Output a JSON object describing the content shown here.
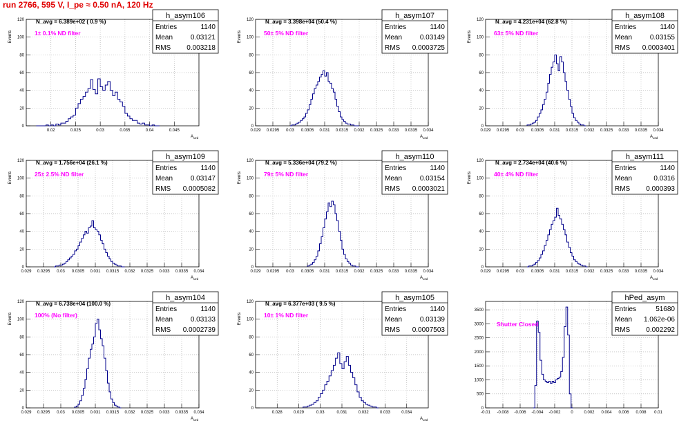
{
  "run_title": "run 2766,   595 V, I_pe ≈ 0.50 nA, 120 Hz",
  "colors": {
    "hist_line": "#00008b",
    "title_red": "#e00000",
    "filter_text": "#ff00ff",
    "grid": "#b0b0b0"
  },
  "chart_data": [
    {
      "type": "histogram",
      "name": "h_asym106",
      "stats": {
        "entries": "1140",
        "mean": "0.03121",
        "rms": "0.003218"
      },
      "stat_labels": [
        "Entries",
        "Mean",
        "RMS"
      ],
      "navg": "N_avg = 6.389e+02 ( 0.9 %)",
      "filter": "1± 0.1% ND filter",
      "ylabel": "Events",
      "xlabel": "A_uzd",
      "xlim": [
        0.015,
        0.05
      ],
      "ylim": [
        0,
        120
      ],
      "xticks": [
        0.02,
        0.025,
        0.03,
        0.035,
        0.04,
        0.045
      ],
      "xtick_labels": [
        "0.02",
        "0.025",
        "0.03",
        "0.035",
        "0.04",
        "0.045"
      ],
      "yticks": [
        0,
        20,
        40,
        60,
        80,
        100,
        120
      ],
      "bins": {
        "start": 0.017,
        "width": 0.0005,
        "counts": [
          0,
          0,
          0,
          0,
          1,
          0,
          1,
          0,
          2,
          1,
          3,
          3,
          5,
          8,
          10,
          12,
          20,
          25,
          30,
          33,
          38,
          42,
          52,
          41,
          36,
          53,
          44,
          40,
          46,
          50,
          40,
          34,
          38,
          30,
          27,
          22,
          14,
          11,
          8,
          6,
          6,
          3,
          2,
          3,
          1,
          1,
          0,
          1,
          0,
          0
        ]
      }
    },
    {
      "type": "histogram",
      "name": "h_asym107",
      "stats": {
        "entries": "1140",
        "mean": "0.03149",
        "rms": "0.0003725"
      },
      "stat_labels": [
        "Entries",
        "Mean",
        "RMS"
      ],
      "navg": "N_avg = 3.398e+04 (50.4 %)",
      "filter": "50± 5% ND filter",
      "ylabel": "Events",
      "xlabel": "A_uzd",
      "xlim": [
        0.029,
        0.034
      ],
      "ylim": [
        0,
        120
      ],
      "xticks": [
        0.029,
        0.0295,
        0.03,
        0.0305,
        0.031,
        0.0315,
        0.032,
        0.0325,
        0.033,
        0.0335,
        0.034
      ],
      "xtick_labels": [
        "0.029",
        "0.0295",
        "0.03",
        "0.0305",
        "0.031",
        "0.0315",
        "0.032",
        "0.0325",
        "0.033",
        "0.0335",
        "0.034"
      ],
      "yticks": [
        0,
        20,
        40,
        60,
        80,
        100,
        120
      ],
      "bins": {
        "start": 0.03,
        "width": 5e-05,
        "counts": [
          0,
          1,
          1,
          2,
          3,
          4,
          6,
          8,
          10,
          14,
          18,
          24,
          30,
          36,
          42,
          46,
          50,
          55,
          58,
          62,
          56,
          60,
          50,
          48,
          42,
          38,
          30,
          22,
          16,
          10,
          7,
          5,
          3,
          2,
          2,
          1,
          1,
          0,
          0,
          0
        ]
      }
    },
    {
      "type": "histogram",
      "name": "h_asym108",
      "stats": {
        "entries": "1140",
        "mean": "0.03155",
        "rms": "0.0003401"
      },
      "stat_labels": [
        "Entries",
        "Mean",
        "RMS"
      ],
      "navg": "N_avg = 4.231e+04 (62.8 %)",
      "filter": "63± 5% ND filter",
      "ylabel": "Events",
      "xlabel": "A_uzd",
      "xlim": [
        0.029,
        0.034
      ],
      "ylim": [
        0,
        120
      ],
      "xticks": [
        0.029,
        0.0295,
        0.03,
        0.0305,
        0.031,
        0.0315,
        0.032,
        0.0325,
        0.033,
        0.0335,
        0.034
      ],
      "xtick_labels": [
        "0.029",
        "0.0295",
        "0.03",
        "0.0305",
        "0.031",
        "0.0315",
        "0.032",
        "0.0325",
        "0.033",
        "0.0335",
        "0.034"
      ],
      "yticks": [
        0,
        20,
        40,
        60,
        80,
        100,
        120
      ],
      "bins": {
        "start": 0.0302,
        "width": 5e-05,
        "counts": [
          1,
          1,
          2,
          3,
          4,
          6,
          10,
          14,
          18,
          24,
          30,
          38,
          48,
          58,
          66,
          72,
          80,
          70,
          62,
          78,
          72,
          60,
          50,
          40,
          30,
          22,
          14,
          9,
          6,
          4,
          2,
          1,
          1,
          0
        ]
      }
    },
    {
      "type": "histogram",
      "name": "h_asym109",
      "stats": {
        "entries": "1140",
        "mean": "0.03147",
        "rms": "0.0005082"
      },
      "stat_labels": [
        "Entries",
        "Mean",
        "RMS"
      ],
      "navg": "N_avg = 1.756e+04 (26.1 %)",
      "filter": "25± 2.5% ND filter",
      "ylabel": "Events",
      "xlabel": "A_uzd",
      "xlim": [
        0.029,
        0.034
      ],
      "ylim": [
        0,
        120
      ],
      "xticks": [
        0.029,
        0.0295,
        0.03,
        0.0305,
        0.031,
        0.0315,
        0.032,
        0.0325,
        0.033,
        0.0335,
        0.034
      ],
      "xtick_labels": [
        "0.029",
        "0.0295",
        "0.03",
        "0.0305",
        "0.031",
        "0.0315",
        "0.032",
        "0.0325",
        "0.033",
        "0.0335",
        "0.034"
      ],
      "yticks": [
        0,
        20,
        40,
        60,
        80,
        100,
        120
      ],
      "bins": {
        "start": 0.0298,
        "width": 5e-05,
        "counts": [
          0,
          1,
          1,
          2,
          2,
          3,
          4,
          6,
          8,
          10,
          12,
          14,
          18,
          20,
          24,
          28,
          32,
          36,
          40,
          38,
          44,
          46,
          52,
          44,
          42,
          40,
          36,
          30,
          26,
          20,
          16,
          12,
          9,
          6,
          4,
          3,
          2,
          1,
          1,
          0,
          0
        ]
      }
    },
    {
      "type": "histogram",
      "name": "h_asym110",
      "stats": {
        "entries": "1140",
        "mean": "0.03154",
        "rms": "0.0003021"
      },
      "stat_labels": [
        "Entries",
        "Mean",
        "RMS"
      ],
      "navg": "N_avg = 5.336e+04 (79.2 %)",
      "filter": "79± 5% ND filter",
      "ylabel": "Events",
      "xlabel": "A_uzd",
      "xlim": [
        0.029,
        0.034
      ],
      "ylim": [
        0,
        120
      ],
      "xticks": [
        0.029,
        0.0295,
        0.03,
        0.0305,
        0.031,
        0.0315,
        0.032,
        0.0325,
        0.033,
        0.0335,
        0.034
      ],
      "xtick_labels": [
        "0.029",
        "0.0295",
        "0.03",
        "0.0305",
        "0.031",
        "0.0315",
        "0.032",
        "0.0325",
        "0.033",
        "0.0335",
        "0.034"
      ],
      "yticks": [
        0,
        20,
        40,
        60,
        80,
        100,
        120
      ],
      "bins": {
        "start": 0.0305,
        "width": 5e-05,
        "counts": [
          1,
          2,
          3,
          5,
          8,
          12,
          18,
          26,
          34,
          44,
          54,
          62,
          72,
          68,
          74,
          70,
          60,
          52,
          40,
          30,
          20,
          14,
          9,
          6,
          4,
          2,
          1,
          1,
          0,
          0
        ]
      }
    },
    {
      "type": "histogram",
      "name": "h_asym111",
      "stats": {
        "entries": "1140",
        "mean": "0.0316",
        "rms": "0.000393"
      },
      "stat_labels": [
        "Entries",
        "Mean",
        "RMS"
      ],
      "navg": "N_avg = 2.734e+04 (40.6 %)",
      "filter": "40± 4% ND filter",
      "ylabel": "Events",
      "xlabel": "A_uzd",
      "xlim": [
        0.029,
        0.034
      ],
      "ylim": [
        0,
        120
      ],
      "xticks": [
        0.029,
        0.0295,
        0.03,
        0.0305,
        0.031,
        0.0315,
        0.032,
        0.0325,
        0.033,
        0.0335,
        0.034
      ],
      "xtick_labels": [
        "0.029",
        "0.0295",
        "0.03",
        "0.0305",
        "0.031",
        "0.0315",
        "0.032",
        "0.0325",
        "0.033",
        "0.0335",
        "0.034"
      ],
      "yticks": [
        0,
        20,
        40,
        60,
        80,
        100,
        120
      ],
      "bins": {
        "start": 0.0302,
        "width": 5e-05,
        "counts": [
          0,
          1,
          1,
          2,
          3,
          5,
          7,
          10,
          14,
          18,
          24,
          30,
          36,
          42,
          48,
          52,
          56,
          66,
          58,
          54,
          48,
          42,
          36,
          28,
          22,
          16,
          12,
          8,
          6,
          4,
          3,
          2,
          1,
          1,
          0
        ]
      }
    },
    {
      "type": "histogram",
      "name": "h_asym104",
      "stats": {
        "entries": "1140",
        "mean": "0.03133",
        "rms": "0.0002739"
      },
      "stat_labels": [
        "Entries",
        "Mean",
        "RMS"
      ],
      "navg": "N_avg = 6.738e+04 (100.0 %)",
      "filter": "100% (No filter)",
      "ylabel": "Events",
      "xlabel": "A_uzd",
      "xlim": [
        0.029,
        0.034
      ],
      "ylim": [
        0,
        120
      ],
      "xticks": [
        0.029,
        0.0295,
        0.03,
        0.0305,
        0.031,
        0.0315,
        0.032,
        0.0325,
        0.033,
        0.0335,
        0.034
      ],
      "xtick_labels": [
        "0.029",
        "0.0295",
        "0.03",
        "0.0305",
        "0.031",
        "0.0315",
        "0.032",
        "0.0325",
        "0.033",
        "0.0335",
        "0.034"
      ],
      "yticks": [
        0,
        20,
        40,
        60,
        80,
        100,
        120
      ],
      "bins": {
        "start": 0.0304,
        "width": 5e-05,
        "counts": [
          1,
          2,
          4,
          8,
          14,
          22,
          32,
          44,
          56,
          66,
          72,
          80,
          95,
          100,
          88,
          78,
          70,
          56,
          42,
          28,
          18,
          10,
          6,
          3,
          2,
          1,
          0
        ]
      }
    },
    {
      "type": "histogram",
      "name": "h_asym105",
      "stats": {
        "entries": "1140",
        "mean": "0.03139",
        "rms": "0.0007503"
      },
      "stat_labels": [
        "Entries",
        "Mean",
        "RMS"
      ],
      "navg": "N_avg = 6.377e+03 ( 9.5 %)",
      "filter": "10± 1% ND filter",
      "ylabel": "Events",
      "xlabel": "A_uzd",
      "xlim": [
        0.027,
        0.035
      ],
      "ylim": [
        0,
        120
      ],
      "xticks": [
        0.028,
        0.029,
        0.03,
        0.031,
        0.032,
        0.033,
        0.034
      ],
      "xtick_labels": [
        "0.028",
        "0.029",
        "0.03",
        "0.031",
        "0.032",
        "0.033",
        "0.034"
      ],
      "yticks": [
        0,
        20,
        40,
        60,
        80,
        100,
        120
      ],
      "bins": {
        "start": 0.0292,
        "width": 0.0001,
        "counts": [
          1,
          1,
          2,
          3,
          4,
          6,
          8,
          12,
          16,
          20,
          26,
          30,
          36,
          42,
          48,
          56,
          62,
          50,
          44,
          52,
          58,
          48,
          40,
          34,
          26,
          18,
          12,
          8,
          6,
          4,
          3,
          2,
          1,
          1,
          0
        ]
      }
    },
    {
      "type": "histogram",
      "name": "hPed_asym",
      "stats": {
        "entries": "51680",
        "mean": "1.062e-06",
        "rms": "0.002292"
      },
      "stat_labels": [
        "Entries",
        "Mean",
        "RMS"
      ],
      "filter": "Shutter Closed",
      "xlabel": "",
      "xlim": [
        -0.01,
        0.01
      ],
      "ylim": [
        0,
        3800
      ],
      "xticks": [
        -0.01,
        -0.008,
        -0.006,
        -0.004,
        -0.002,
        0,
        0.002,
        0.004,
        0.006,
        0.008,
        0.01
      ],
      "xtick_labels": [
        "-0.01",
        "-0.008",
        "-0.006",
        "-0.004",
        "-0.002",
        "0",
        "0.002",
        "0.004",
        "0.006",
        "0.008",
        "0.01"
      ],
      "yticks": [
        0,
        500,
        1000,
        1500,
        2000,
        2500,
        3000,
        3500
      ],
      "bins": {
        "start": -0.0045,
        "width": 0.0002,
        "counts": [
          0,
          800,
          3100,
          2700,
          1700,
          1200,
          1000,
          950,
          900,
          950,
          880,
          950,
          900,
          1000,
          1050,
          1100,
          1300,
          1800,
          2900,
          3600,
          2600,
          500,
          0
        ]
      }
    }
  ]
}
